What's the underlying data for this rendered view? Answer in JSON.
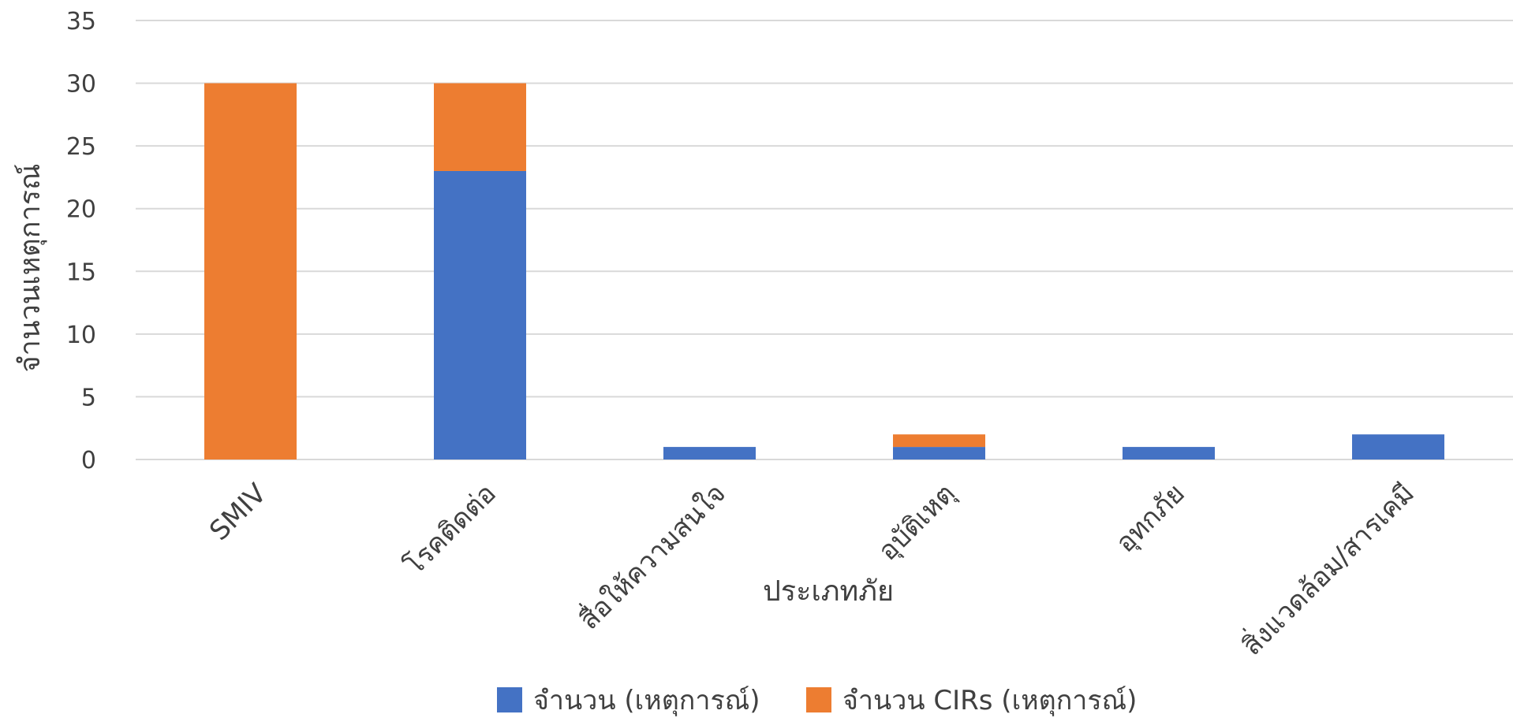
{
  "chart_data": {
    "type": "bar",
    "stacked": true,
    "categories": [
      "SMIV",
      "โรคติดต่อ",
      "สื่อให้ความสนใจ",
      "อุบัติเหตุ",
      "อุทกภัย",
      "สิ่งแวดล้อม/สารเคมี"
    ],
    "series": [
      {
        "name": "จำนวน (เหตุการณ์)",
        "values": [
          0,
          23,
          1,
          1,
          1,
          2
        ],
        "color": "#4472C4"
      },
      {
        "name": "จำนวน CIRs (เหตุการณ์)",
        "values": [
          30,
          7,
          0,
          1,
          0,
          0
        ],
        "color": "#ED7D31"
      }
    ],
    "xlabel": "ประเภทภัย",
    "ylabel": "จำนวนเหตุการณ์",
    "ylim": [
      0,
      35
    ],
    "yticks": [
      0,
      5,
      10,
      15,
      20,
      25,
      30,
      35
    ],
    "grid": true,
    "legend": "bottom"
  }
}
